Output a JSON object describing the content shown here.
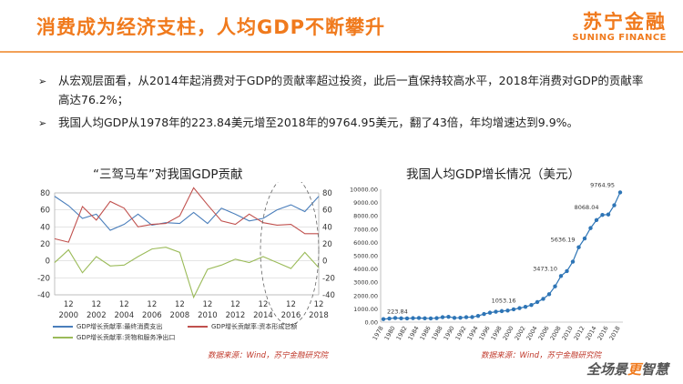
{
  "header": {
    "title": "消费成为经济支柱，人均GDP不断攀升",
    "logo_cn": "苏宁金融",
    "logo_en": "SUNING FINANCE"
  },
  "bullets": [
    {
      "marker": "➢",
      "text": "从宏观层面看，从2014年起消费对于GDP的贡献率超过投资，此后一直保持较高水平，2018年消费对GDP的贡献率高达76.2%；"
    },
    {
      "marker": "➢",
      "text": "我国人均GDP从1978年的223.84美元增至2018年的9764.95美元，翻了43倍，年均增速达到9.9%。"
    }
  ],
  "left_chart": {
    "title": "“三驾马车”对我国GDP贡献",
    "source": "数据来源：Wind，苏宁金融研究院",
    "legend": [
      "GDP增长贡献率:最终消费支出",
      "GDP增长贡献率:资本形成总额",
      "GDP增长贡献率:货物和服务净出口"
    ]
  },
  "right_chart": {
    "title": "我国人均GDP增长情况（美元）",
    "source": "数据来源：Wind，苏宁金融研究院"
  },
  "footer": {
    "slogan_a": "全场景",
    "slogan_b": "更",
    "slogan_c": "智慧"
  },
  "colors": {
    "accent": "#f07a1d",
    "consumption": "#4a7ebb",
    "investment": "#c0504d",
    "net_export": "#9bbb59",
    "gdp_line": "#2e75b6"
  },
  "chart_data": [
    {
      "type": "line",
      "title": "“三驾马车”对我国GDP贡献",
      "x": [
        1999,
        2000,
        2001,
        2002,
        2003,
        2004,
        2005,
        2006,
        2007,
        2008,
        2009,
        2010,
        2011,
        2012,
        2013,
        2014,
        2015,
        2016,
        2017,
        2018
      ],
      "xtick_labels": [
        [
          "12",
          "2000"
        ],
        [
          "12",
          "2002"
        ],
        [
          "12",
          "2004"
        ],
        [
          "12",
          "2006"
        ],
        [
          "12",
          "2008"
        ],
        [
          "12",
          "2010"
        ],
        [
          "12",
          "2012"
        ],
        [
          "12",
          "2014"
        ],
        [
          "12",
          "2016"
        ],
        [
          "12",
          "2018"
        ]
      ],
      "yleft_ticks": [
        -40,
        -20,
        0,
        20,
        40,
        60,
        80
      ],
      "yright_ticks": [
        -40,
        -20,
        0,
        20,
        40,
        60,
        80
      ],
      "ylim": [
        -40,
        80
      ],
      "series": [
        {
          "name": "GDP增长贡献率:最终消费支出",
          "values": [
            76,
            65,
            50,
            55,
            36,
            43,
            55,
            42,
            45,
            44,
            57,
            44,
            62,
            55,
            47,
            50,
            60,
            66,
            58,
            76
          ]
        },
        {
          "name": "GDP增长贡献率:资本形成总额",
          "values": [
            26,
            22,
            64,
            48,
            70,
            62,
            40,
            43,
            44,
            53,
            86,
            66,
            47,
            43,
            55,
            45,
            42,
            43,
            32,
            32
          ]
        },
        {
          "name": "GDP增长贡献率:货物和服务净出口",
          "values": [
            -2,
            13,
            -14,
            5,
            -6,
            -5,
            5,
            14,
            16,
            10,
            -43,
            -10,
            -5,
            2,
            -2,
            5,
            -2,
            -9,
            10,
            -8
          ]
        }
      ]
    },
    {
      "type": "line",
      "title": "我国人均GDP增长情况（美元）",
      "categories": [
        "1978",
        "1979",
        "1980",
        "1981",
        "1982",
        "1983",
        "1984",
        "1985",
        "1986",
        "1987",
        "1988",
        "1989",
        "1990",
        "1991",
        "1992",
        "1993",
        "1994",
        "1995",
        "1996",
        "1997",
        "1998",
        "1999",
        "2000",
        "2001",
        "2002",
        "2003",
        "2004",
        "2005",
        "2006",
        "2007",
        "2008",
        "2009",
        "2010",
        "2011",
        "2012",
        "2013",
        "2014",
        "2015",
        "2016",
        "2017",
        "2018"
      ],
      "xtick_labels": [
        "1978",
        "1980",
        "1982",
        "1984",
        "1986",
        "1988",
        "1990",
        "1992",
        "1994",
        "1996",
        "1998",
        "2000",
        "2002",
        "2004",
        "2006",
        "2008",
        "2010",
        "2012",
        "2014",
        "2016",
        "2018"
      ],
      "values": [
        223.84,
        270,
        310,
        290,
        280,
        300,
        310,
        290,
        280,
        300,
        370,
        400,
        320,
        330,
        370,
        380,
        470,
        610,
        710,
        780,
        830,
        870,
        960,
        1053.16,
        1150,
        1290,
        1510,
        1750,
        2100,
        2690,
        3473.1,
        3840,
        4550,
        5636.19,
        6300,
        7080,
        7680,
        8068.04,
        8100,
        8800,
        9764.95
      ],
      "point_labels": {
        "1978": "223.84",
        "2001": "1053.16",
        "2008": "3473.10",
        "2011": "5636.19",
        "2015": "8068.04",
        "2018": "9764.95"
      },
      "yticks": [
        0.0,
        1000.0,
        2000.0,
        3000.0,
        4000.0,
        5000.0,
        6000.0,
        7000.0,
        8000.0,
        9000.0,
        10000.0
      ],
      "ylim": [
        0,
        10000
      ]
    }
  ]
}
